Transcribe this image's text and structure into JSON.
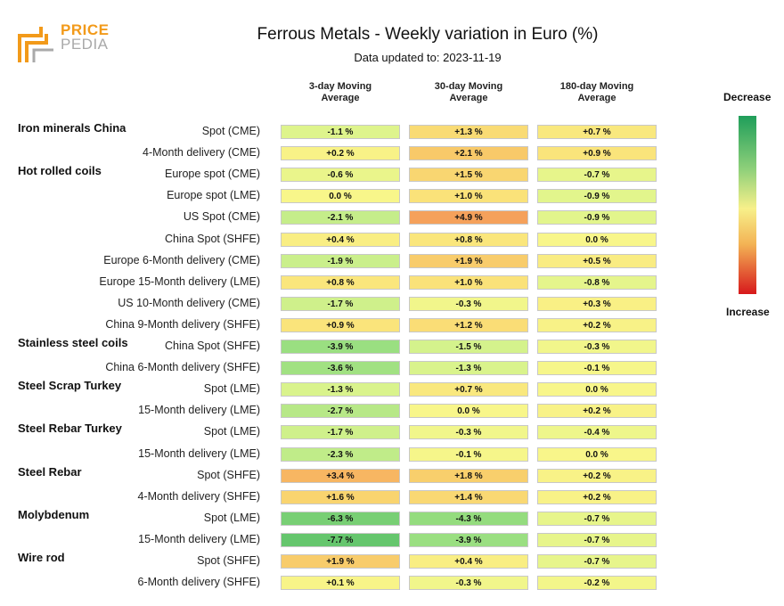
{
  "brand": {
    "line1": "PRICE",
    "line2": "PEDIA",
    "logo_colors": [
      "#f29a1a",
      "#a9a9a9"
    ]
  },
  "title": "Ferrous Metals - Weekly variation in Euro (%)",
  "subtitle": "Data updated to: 2023-11-19",
  "legend": {
    "top_label": "Decrease",
    "bottom_label": "Increase",
    "colors": [
      "#1f9e5a",
      "#f7f08a",
      "#d7191c"
    ]
  },
  "chart_data": {
    "type": "heatmap",
    "columns": [
      "3-day Moving Average",
      "30-day Moving Average",
      "180-day Moving Average"
    ],
    "rows": [
      {
        "group": "Iron minerals China",
        "label": "Spot (CME)",
        "values": [
          -1.1,
          1.3,
          0.7
        ]
      },
      {
        "group": "",
        "label": "4-Month delivery (CME)",
        "values": [
          0.2,
          2.1,
          0.9
        ]
      },
      {
        "group": "Hot rolled coils",
        "label": "Europe spot (CME)",
        "values": [
          -0.6,
          1.5,
          -0.7
        ]
      },
      {
        "group": "",
        "label": "Europe spot (LME)",
        "values": [
          0.0,
          1.0,
          -0.9
        ]
      },
      {
        "group": "",
        "label": "US Spot (CME)",
        "values": [
          -2.1,
          4.9,
          -0.9
        ]
      },
      {
        "group": "",
        "label": "China Spot (SHFE)",
        "values": [
          0.4,
          0.8,
          0.0
        ]
      },
      {
        "group": "",
        "label": "Europe 6-Month delivery (CME)",
        "values": [
          -1.9,
          1.9,
          0.5
        ]
      },
      {
        "group": "",
        "label": "Europe 15-Month delivery (LME)",
        "values": [
          0.8,
          1.0,
          -0.8
        ]
      },
      {
        "group": "",
        "label": "US 10-Month delivery (CME)",
        "values": [
          -1.7,
          -0.3,
          0.3
        ]
      },
      {
        "group": "",
        "label": "China 9-Month delivery (SHFE)",
        "values": [
          0.9,
          1.2,
          0.2
        ]
      },
      {
        "group": "Stainless steel coils",
        "label": "China Spot (SHFE)",
        "values": [
          -3.9,
          -1.5,
          -0.3
        ]
      },
      {
        "group": "",
        "label": "China 6-Month delivery (SHFE)",
        "values": [
          -3.6,
          -1.3,
          -0.1
        ]
      },
      {
        "group": "Steel Scrap Turkey",
        "label": "Spot (LME)",
        "values": [
          -1.3,
          0.7,
          0.0
        ]
      },
      {
        "group": "",
        "label": "15-Month delivery (LME)",
        "values": [
          -2.7,
          0.0,
          0.2
        ]
      },
      {
        "group": "Steel Rebar Turkey",
        "label": "Spot (LME)",
        "values": [
          -1.7,
          -0.3,
          -0.4
        ]
      },
      {
        "group": "",
        "label": "15-Month delivery (LME)",
        "values": [
          -2.3,
          -0.1,
          0.0
        ]
      },
      {
        "group": "Steel Rebar",
        "label": "Spot (SHFE)",
        "values": [
          3.4,
          1.8,
          0.2
        ]
      },
      {
        "group": "",
        "label": "4-Month delivery (SHFE)",
        "values": [
          1.6,
          1.4,
          0.2
        ]
      },
      {
        "group": "Molybdenum",
        "label": "Spot (LME)",
        "values": [
          -6.3,
          -4.3,
          -0.7
        ]
      },
      {
        "group": "",
        "label": "15-Month delivery (LME)",
        "values": [
          -7.7,
          -3.9,
          -0.7
        ]
      },
      {
        "group": "Wire rod",
        "label": "Spot (SHFE)",
        "values": [
          1.9,
          0.4,
          -0.7
        ]
      },
      {
        "group": "",
        "label": "6-Month delivery (SHFE)",
        "values": [
          0.1,
          -0.3,
          -0.2
        ]
      }
    ],
    "value_suffix": " %",
    "colors": {
      "decrease_strong": "#1f9e5a",
      "neutral": "#f7f08a",
      "increase_strong": "#d7191c"
    }
  }
}
